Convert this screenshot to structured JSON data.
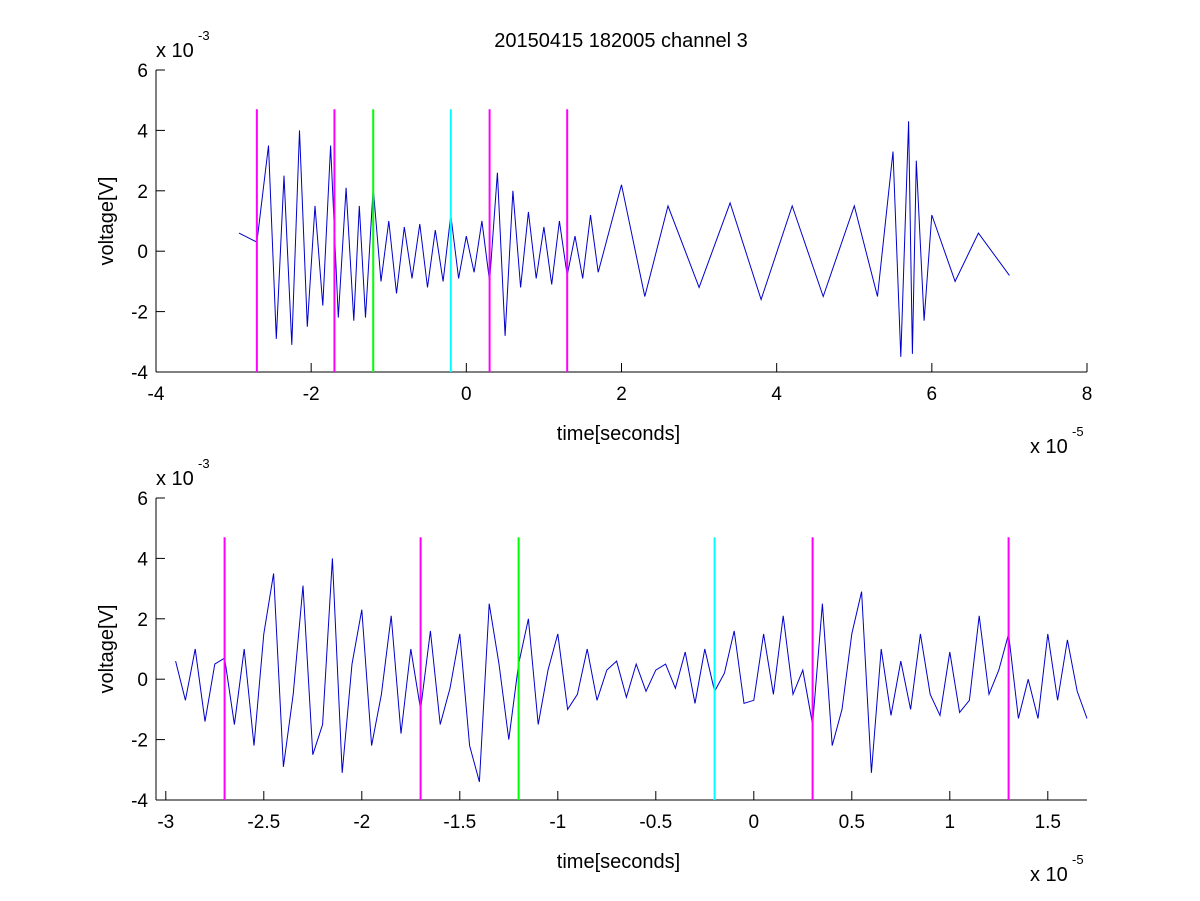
{
  "chart_data": [
    {
      "type": "line",
      "title": "20150415 182005 channel 3",
      "xlabel": "time[seconds]",
      "ylabel": "voltage[V]",
      "x_multiplier_label": "x 10",
      "x_multiplier_exp": "-5",
      "y_multiplier_label": "x 10",
      "y_multiplier_exp": "-3",
      "xlim": [
        -4,
        8
      ],
      "ylim": [
        -4,
        6
      ],
      "xticks": [
        -4,
        -2,
        0,
        2,
        4,
        6,
        8
      ],
      "xtick_labels": [
        "-4",
        "-2",
        "0",
        "2",
        "4",
        "6",
        "8"
      ],
      "yticks": [
        -4,
        -2,
        0,
        2,
        4,
        6
      ],
      "ytick_labels": [
        "-4",
        "-2",
        "0",
        "2",
        "4",
        "6"
      ],
      "grid": false,
      "series": [
        {
          "color": "#0000cc",
          "x": [
            -2.93,
            -2.7,
            -2.55,
            -2.45,
            -2.35,
            -2.25,
            -2.15,
            -2.05,
            -1.95,
            -1.85,
            -1.75,
            -1.65,
            -1.55,
            -1.45,
            -1.38,
            -1.3,
            -1.2,
            -1.1,
            -1.0,
            -0.9,
            -0.8,
            -0.7,
            -0.6,
            -0.5,
            -0.4,
            -0.3,
            -0.2,
            -0.1,
            0.0,
            0.1,
            0.2,
            0.3,
            0.4,
            0.5,
            0.6,
            0.7,
            0.8,
            0.9,
            1.0,
            1.1,
            1.2,
            1.3,
            1.4,
            1.5,
            1.6,
            1.7,
            2.0,
            2.3,
            2.6,
            3.0,
            3.4,
            3.8,
            4.2,
            4.6,
            5.0,
            5.3,
            5.5,
            5.6,
            5.7,
            5.75,
            5.8,
            5.9,
            6.0,
            6.3,
            6.6,
            7.0
          ],
          "y": [
            0.6,
            0.3,
            3.5,
            -2.9,
            2.5,
            -3.1,
            4.0,
            -2.5,
            1.5,
            -1.8,
            3.5,
            -2.2,
            2.1,
            -2.3,
            1.5,
            -2.2,
            2.1,
            -1.0,
            1.0,
            -1.4,
            0.8,
            -0.9,
            0.9,
            -1.2,
            0.7,
            -1.0,
            1.2,
            -0.9,
            0.5,
            -0.7,
            1.0,
            -1.0,
            2.6,
            -2.8,
            2.0,
            -1.2,
            1.3,
            -0.9,
            0.8,
            -1.1,
            1.0,
            -0.8,
            0.5,
            -0.9,
            1.2,
            -0.7,
            2.2,
            -1.5,
            1.5,
            -1.2,
            1.6,
            -1.6,
            1.5,
            -1.5,
            1.5,
            -1.5,
            3.3,
            -3.5,
            4.3,
            -3.4,
            3.0,
            -2.3,
            1.2,
            -1.0,
            0.6,
            -0.8
          ]
        }
      ],
      "markers": [
        {
          "x": -2.7,
          "color": "#ff00ff"
        },
        {
          "x": -1.7,
          "color": "#ff00ff"
        },
        {
          "x": -1.2,
          "color": "#00ff00"
        },
        {
          "x": -0.2,
          "color": "#00ffff"
        },
        {
          "x": 0.3,
          "color": "#ff00ff"
        },
        {
          "x": 1.3,
          "color": "#ff00ff"
        }
      ],
      "marker_top": 4.7,
      "marker_bottom": -4
    },
    {
      "type": "line",
      "xlabel": "time[seconds]",
      "ylabel": "voltage[V]",
      "x_multiplier_label": "x 10",
      "x_multiplier_exp": "-5",
      "y_multiplier_label": "x 10",
      "y_multiplier_exp": "-3",
      "xlim": [
        -3.05,
        1.7
      ],
      "ylim": [
        -4,
        6
      ],
      "xticks": [
        -3,
        -2.5,
        -2,
        -1.5,
        -1,
        -0.5,
        0,
        0.5,
        1,
        1.5
      ],
      "xtick_labels": [
        "-3",
        "-2.5",
        "-2",
        "-1.5",
        "-1",
        "-0.5",
        "0",
        "0.5",
        "1",
        "1.5"
      ],
      "yticks": [
        -4,
        -2,
        0,
        2,
        4,
        6
      ],
      "ytick_labels": [
        "-4",
        "-2",
        "0",
        "2",
        "4",
        "6"
      ],
      "grid": false,
      "series": [
        {
          "color": "#0000cc",
          "x": [
            -2.95,
            -2.9,
            -2.85,
            -2.8,
            -2.75,
            -2.7,
            -2.65,
            -2.6,
            -2.55,
            -2.5,
            -2.45,
            -2.4,
            -2.35,
            -2.3,
            -2.25,
            -2.2,
            -2.15,
            -2.1,
            -2.05,
            -2.0,
            -1.95,
            -1.9,
            -1.85,
            -1.8,
            -1.75,
            -1.7,
            -1.65,
            -1.6,
            -1.55,
            -1.5,
            -1.45,
            -1.4,
            -1.35,
            -1.3,
            -1.25,
            -1.2,
            -1.15,
            -1.1,
            -1.05,
            -1.0,
            -0.95,
            -0.9,
            -0.85,
            -0.8,
            -0.75,
            -0.7,
            -0.65,
            -0.6,
            -0.55,
            -0.5,
            -0.45,
            -0.4,
            -0.35,
            -0.3,
            -0.25,
            -0.2,
            -0.15,
            -0.1,
            -0.05,
            0.0,
            0.05,
            0.1,
            0.15,
            0.2,
            0.25,
            0.3,
            0.35,
            0.4,
            0.45,
            0.5,
            0.55,
            0.6,
            0.65,
            0.7,
            0.75,
            0.8,
            0.85,
            0.9,
            0.95,
            1.0,
            1.05,
            1.1,
            1.15,
            1.2,
            1.25,
            1.3,
            1.35,
            1.4,
            1.45,
            1.5,
            1.55,
            1.6,
            1.65,
            1.7
          ],
          "y": [
            0.6,
            -0.7,
            1.0,
            -1.4,
            0.5,
            0.7,
            -1.5,
            1.0,
            -2.2,
            1.5,
            3.5,
            -2.9,
            -0.5,
            3.1,
            -2.5,
            -1.5,
            4.0,
            -3.1,
            0.5,
            2.3,
            -2.2,
            -0.5,
            2.1,
            -1.8,
            1.0,
            -1.0,
            1.6,
            -1.5,
            -0.3,
            1.5,
            -2.2,
            -3.4,
            2.5,
            0.5,
            -2.0,
            0.5,
            2.0,
            -1.5,
            0.3,
            1.5,
            -1.0,
            -0.5,
            1.0,
            -0.7,
            0.3,
            0.6,
            -0.6,
            0.5,
            -0.4,
            0.3,
            0.5,
            -0.3,
            0.9,
            -0.8,
            1.0,
            -0.4,
            0.2,
            1.6,
            -0.8,
            -0.7,
            1.5,
            -0.5,
            2.1,
            -0.5,
            0.3,
            -1.5,
            2.5,
            -2.2,
            -1.0,
            1.5,
            2.9,
            -3.1,
            1.0,
            -1.2,
            0.6,
            -1.0,
            1.5,
            -0.5,
            -1.2,
            0.9,
            -1.1,
            -0.7,
            2.1,
            -0.5,
            0.3,
            1.5,
            -1.3,
            0.0,
            -1.3,
            1.5,
            -0.7,
            1.3,
            -0.4,
            -1.3
          ]
        }
      ],
      "markers": [
        {
          "x": -2.7,
          "color": "#ff00ff"
        },
        {
          "x": -1.7,
          "color": "#ff00ff"
        },
        {
          "x": -1.2,
          "color": "#00ff00"
        },
        {
          "x": -0.2,
          "color": "#00ffff"
        },
        {
          "x": 0.3,
          "color": "#ff00ff"
        },
        {
          "x": 1.3,
          "color": "#ff00ff"
        }
      ],
      "marker_top": 4.7,
      "marker_bottom": -4
    }
  ]
}
